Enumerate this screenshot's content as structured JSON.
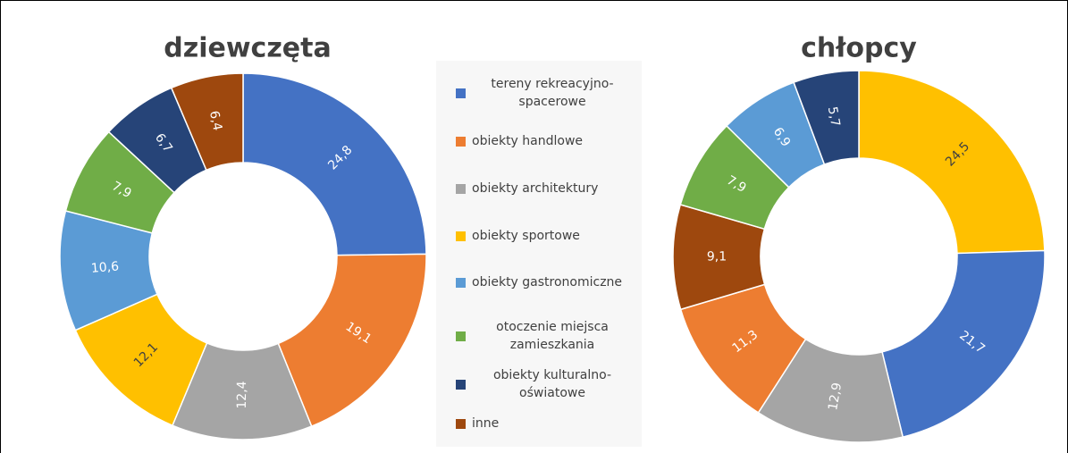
{
  "chart_data": [
    {
      "type": "pie",
      "title": "dziewczęta",
      "categories": [
        "tereny rekreacyjno-spacerowe",
        "obiekty handlowe",
        "obiekty architektury",
        "obiekty sportowe",
        "obiekty gastronomiczne",
        "otoczenie miejsca zamieszkania",
        "obiekty kulturalno-oświatowe",
        "inne"
      ],
      "values": [
        24.8,
        19.1,
        12.4,
        12.1,
        10.6,
        7.9,
        6.7,
        6.4
      ],
      "value_labels": [
        "24,8",
        "19,1",
        "12,4",
        "12,1",
        "10,6",
        "7,9",
        "6,7",
        "6,4"
      ],
      "colors": [
        "#4472c4",
        "#ed7d31",
        "#a5a5a5",
        "#ffc000",
        "#5b9bd5",
        "#70ad47",
        "#264478",
        "#9e480e"
      ]
    },
    {
      "type": "pie",
      "title": "chłopcy",
      "categories": [
        "obiekty sportowe",
        "tereny rekreacyjno-spacerowe",
        "obiekty architektury",
        "obiekty handlowe",
        "inne",
        "otoczenie miejsca zamieszkania",
        "obiekty gastronomiczne",
        "obiekty kulturalno-oświatowe"
      ],
      "values": [
        24.5,
        21.7,
        12.9,
        11.3,
        9.1,
        7.9,
        6.9,
        5.7
      ],
      "value_labels": [
        "24,5",
        "21,7",
        "12,9",
        "11,3",
        "9,1",
        "7,9",
        "6,9",
        "5,7"
      ],
      "colors": [
        "#ffc000",
        "#4472c4",
        "#a5a5a5",
        "#ed7d31",
        "#9e480e",
        "#70ad47",
        "#5b9bd5",
        "#264478"
      ]
    }
  ]
}
